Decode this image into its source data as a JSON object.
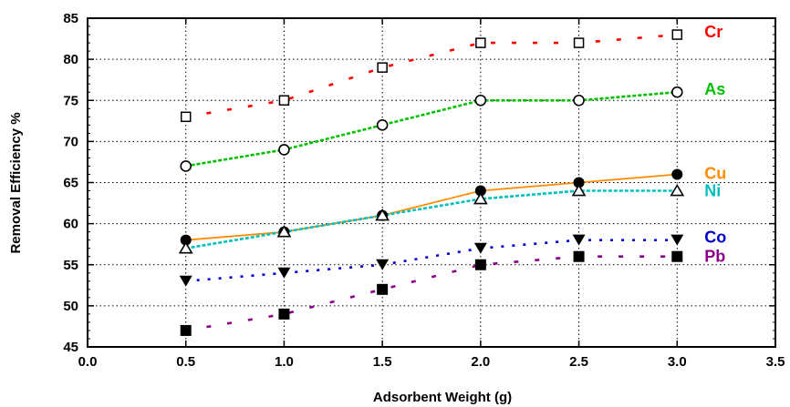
{
  "chart_data": {
    "type": "line",
    "xlabel": "Adsorbent Weight (g)",
    "ylabel": "Removal Efficiency %",
    "xlim": [
      0,
      3.5
    ],
    "ylim": [
      45,
      85
    ],
    "x_ticks": [
      "0.0",
      "0.5",
      "1.0",
      "1.5",
      "2.0",
      "2.5",
      "3.0",
      "3.5"
    ],
    "y_ticks": [
      "45",
      "50",
      "55",
      "60",
      "65",
      "70",
      "75",
      "80",
      "85"
    ],
    "grid": true,
    "legend": "inline labels at right end of each series",
    "x": [
      0.5,
      1.0,
      1.5,
      2.0,
      2.5,
      3.0
    ],
    "series": [
      {
        "name": "Cr",
        "values": [
          73,
          75,
          79,
          82,
          82,
          83
        ],
        "color": "#ff0000",
        "marker": "square-open",
        "line": "dashed-sparse"
      },
      {
        "name": "As",
        "values": [
          67,
          69,
          72,
          75,
          75,
          76
        ],
        "color": "#00c000",
        "marker": "circle-open",
        "line": "dashed"
      },
      {
        "name": "Cu",
        "values": [
          58,
          59,
          61,
          64,
          65,
          66
        ],
        "color": "#ff8c00",
        "marker": "circle-filled",
        "line": "solid"
      },
      {
        "name": "Ni",
        "values": [
          57,
          59,
          61,
          63,
          64,
          64
        ],
        "color": "#00bfbf",
        "marker": "triangle-open",
        "line": "dashed"
      },
      {
        "name": "Co",
        "values": [
          53,
          54,
          55,
          57,
          58,
          58
        ],
        "color": "#0000cd",
        "marker": "triangle-down-filled",
        "line": "dotted"
      },
      {
        "name": "Pb",
        "values": [
          47,
          49,
          52,
          55,
          56,
          56
        ],
        "color": "#8b008b",
        "marker": "square-filled",
        "line": "dashed-sparse"
      }
    ]
  }
}
